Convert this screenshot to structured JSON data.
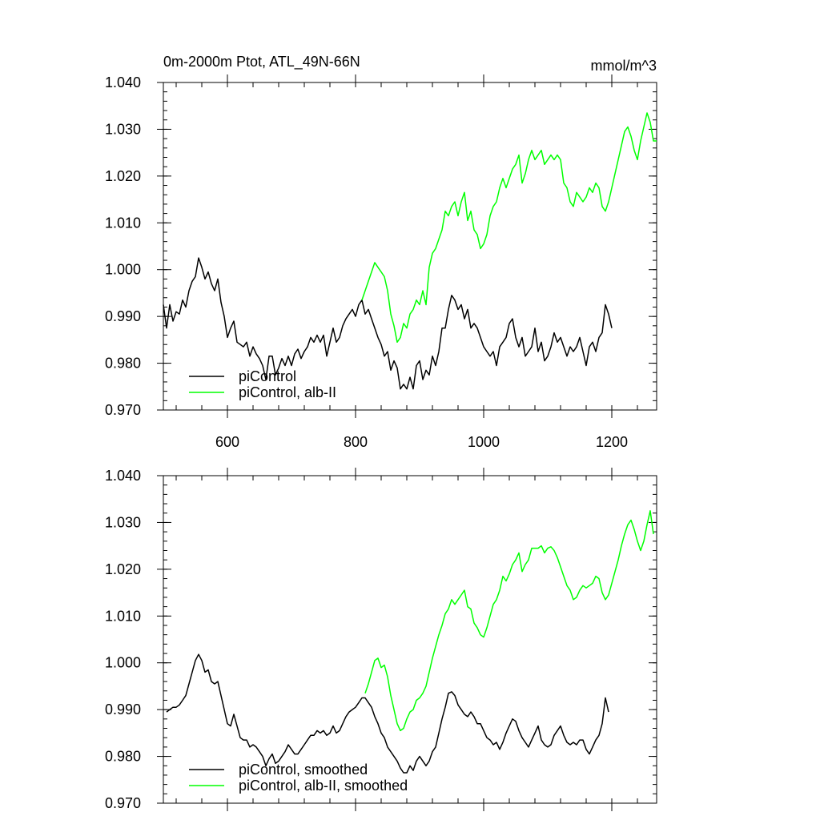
{
  "chart_data": [
    {
      "type": "line",
      "title_left": "0m-2000m Ptot, ATL_49N-66N",
      "title_right": "mmol/m^3",
      "xlabel": "",
      "ylabel": "",
      "xlim": [
        500,
        1270
      ],
      "ylim": [
        0.97,
        1.04
      ],
      "x_ticks": [
        600,
        800,
        1000,
        1200
      ],
      "x_tick_labels": [
        "600",
        "800",
        "1000",
        "1200"
      ],
      "y_ticks": [
        0.97,
        0.98,
        0.99,
        1.0,
        1.01,
        1.02,
        1.03,
        1.04
      ],
      "y_tick_labels": [
        "0.970",
        "0.980",
        "0.990",
        "1.000",
        "1.010",
        "1.020",
        "1.030",
        "1.040"
      ],
      "grid": false,
      "legend_position": "bottom-left",
      "series": [
        {
          "name": "piControl",
          "color": "#000000",
          "x": [
            500,
            505,
            510,
            515,
            520,
            525,
            530,
            535,
            540,
            545,
            550,
            555,
            560,
            565,
            570,
            575,
            580,
            585,
            590,
            595,
            600,
            605,
            610,
            615,
            620,
            625,
            630,
            635,
            640,
            645,
            650,
            655,
            660,
            665,
            670,
            675,
            680,
            685,
            690,
            695,
            700,
            705,
            710,
            715,
            720,
            725,
            730,
            735,
            740,
            745,
            750,
            755,
            760,
            765,
            770,
            775,
            780,
            785,
            790,
            795,
            800,
            805,
            810,
            815,
            820,
            825,
            830,
            835,
            840,
            845,
            850,
            855,
            860,
            865,
            870,
            875,
            880,
            885,
            890,
            895,
            900,
            905,
            910,
            915,
            920,
            925,
            930,
            935,
            940,
            945,
            950,
            955,
            960,
            965,
            970,
            975,
            980,
            985,
            990,
            995,
            1000,
            1005,
            1010,
            1015,
            1020,
            1025,
            1030,
            1035,
            1040,
            1045,
            1050,
            1055,
            1060,
            1065,
            1070,
            1075,
            1080,
            1085,
            1090,
            1095,
            1100,
            1105,
            1110,
            1115,
            1120,
            1125,
            1130,
            1135,
            1140,
            1145,
            1150,
            1155,
            1160,
            1165,
            1170,
            1175,
            1180,
            1185,
            1190,
            1195,
            1200
          ],
          "y": [
            0.9925,
            0.9875,
            0.9925,
            0.989,
            0.991,
            0.9905,
            0.9935,
            0.992,
            0.9955,
            0.9975,
            0.9985,
            1.0025,
            1.0005,
            0.998,
            0.9995,
            0.997,
            0.9955,
            0.998,
            0.993,
            0.99,
            0.9855,
            0.9875,
            0.989,
            0.9845,
            0.984,
            0.9835,
            0.9845,
            0.9815,
            0.9835,
            0.982,
            0.981,
            0.9795,
            0.9765,
            0.9815,
            0.9815,
            0.9775,
            0.979,
            0.981,
            0.9795,
            0.9815,
            0.9795,
            0.982,
            0.983,
            0.981,
            0.9825,
            0.9835,
            0.9855,
            0.9845,
            0.986,
            0.9845,
            0.986,
            0.9815,
            0.9845,
            0.9875,
            0.9845,
            0.9855,
            0.988,
            0.9895,
            0.9905,
            0.9915,
            0.99,
            0.9925,
            0.9935,
            0.9905,
            0.9915,
            0.9895,
            0.9875,
            0.9855,
            0.984,
            0.9815,
            0.9825,
            0.9785,
            0.9805,
            0.979,
            0.9745,
            0.9755,
            0.9745,
            0.977,
            0.9745,
            0.9795,
            0.9805,
            0.9765,
            0.9785,
            0.9775,
            0.9815,
            0.9795,
            0.9825,
            0.9875,
            0.9875,
            0.9915,
            0.9945,
            0.9935,
            0.9915,
            0.9925,
            0.9895,
            0.9915,
            0.9875,
            0.9885,
            0.9875,
            0.9855,
            0.9835,
            0.9825,
            0.9815,
            0.9825,
            0.9795,
            0.9835,
            0.9845,
            0.9855,
            0.9885,
            0.9895,
            0.9855,
            0.9835,
            0.9855,
            0.9815,
            0.9825,
            0.9835,
            0.9875,
            0.9825,
            0.9845,
            0.9805,
            0.9815,
            0.9835,
            0.9865,
            0.9845,
            0.9855,
            0.9835,
            0.9815,
            0.9835,
            0.9825,
            0.9835,
            0.9855,
            0.9825,
            0.9795,
            0.9835,
            0.9845,
            0.9825,
            0.9855,
            0.9865,
            0.9925,
            0.9905,
            0.9875
          ]
        },
        {
          "name": "piControl, alb-II",
          "color": "#00ff00",
          "x": [
            810,
            815,
            820,
            825,
            830,
            835,
            840,
            845,
            850,
            855,
            860,
            865,
            870,
            875,
            880,
            885,
            890,
            895,
            900,
            905,
            910,
            915,
            920,
            925,
            930,
            935,
            940,
            945,
            950,
            955,
            960,
            965,
            970,
            975,
            980,
            985,
            990,
            995,
            1000,
            1005,
            1010,
            1015,
            1020,
            1025,
            1030,
            1035,
            1040,
            1045,
            1050,
            1055,
            1060,
            1065,
            1070,
            1075,
            1080,
            1085,
            1090,
            1095,
            1100,
            1105,
            1110,
            1115,
            1120,
            1125,
            1130,
            1135,
            1140,
            1145,
            1150,
            1155,
            1160,
            1165,
            1170,
            1175,
            1180,
            1185,
            1190,
            1195,
            1200,
            1205,
            1210,
            1215,
            1220,
            1225,
            1230,
            1235,
            1240,
            1245,
            1250,
            1255,
            1260,
            1265,
            1270
          ],
          "y": [
            0.9935,
            0.9955,
            0.9975,
            0.9995,
            1.0015,
            1.0005,
            0.9995,
            0.9985,
            0.9955,
            0.9905,
            0.988,
            0.9845,
            0.9855,
            0.9885,
            0.9875,
            0.9905,
            0.9915,
            0.9935,
            0.9925,
            0.9955,
            0.9925,
            1.0005,
            1.0035,
            1.0045,
            1.0065,
            1.0085,
            1.0125,
            1.0115,
            1.0135,
            1.0145,
            1.0115,
            1.0145,
            1.0165,
            1.0105,
            1.0125,
            1.0085,
            1.0075,
            1.0045,
            1.0055,
            1.0075,
            1.0115,
            1.0135,
            1.0145,
            1.0175,
            1.0195,
            1.0175,
            1.0195,
            1.0215,
            1.0225,
            1.0245,
            1.0185,
            1.0205,
            1.0235,
            1.0255,
            1.0235,
            1.0245,
            1.0255,
            1.0225,
            1.0235,
            1.0245,
            1.0235,
            1.0245,
            1.0235,
            1.0185,
            1.0175,
            1.0145,
            1.0135,
            1.0165,
            1.0155,
            1.0145,
            1.0155,
            1.0175,
            1.0165,
            1.0185,
            1.0175,
            1.0135,
            1.0125,
            1.0145,
            1.0175,
            1.0205,
            1.0235,
            1.0265,
            1.0295,
            1.0305,
            1.0285,
            1.0255,
            1.0235,
            1.0275,
            1.0305,
            1.0335,
            1.0315,
            1.0275,
            1.0275
          ]
        }
      ]
    },
    {
      "type": "line",
      "title_left": "",
      "title_right": "",
      "xlabel": "",
      "ylabel": "",
      "xlim": [
        500,
        1270
      ],
      "ylim": [
        0.97,
        1.04
      ],
      "x_ticks": [
        600,
        800,
        1000,
        1200
      ],
      "x_tick_labels": [],
      "y_ticks": [
        0.97,
        0.98,
        0.99,
        1.0,
        1.01,
        1.02,
        1.03,
        1.04
      ],
      "y_tick_labels": [
        "0.970",
        "0.980",
        "0.990",
        "1.000",
        "1.010",
        "1.020",
        "1.030",
        "1.040"
      ],
      "grid": false,
      "legend_position": "bottom-left",
      "series": [
        {
          "name": "piControl, smoothed",
          "color": "#000000",
          "x": [
            505,
            510,
            515,
            520,
            525,
            530,
            535,
            540,
            545,
            550,
            555,
            560,
            565,
            570,
            575,
            580,
            585,
            590,
            595,
            600,
            605,
            610,
            615,
            620,
            625,
            630,
            635,
            640,
            645,
            650,
            655,
            660,
            665,
            670,
            675,
            680,
            685,
            690,
            695,
            700,
            705,
            710,
            715,
            720,
            725,
            730,
            735,
            740,
            745,
            750,
            755,
            760,
            765,
            770,
            775,
            780,
            785,
            790,
            795,
            800,
            805,
            810,
            815,
            820,
            825,
            830,
            835,
            840,
            845,
            850,
            855,
            860,
            865,
            870,
            875,
            880,
            885,
            890,
            895,
            900,
            905,
            910,
            915,
            920,
            925,
            930,
            935,
            940,
            945,
            950,
            955,
            960,
            965,
            970,
            975,
            980,
            985,
            990,
            995,
            1000,
            1005,
            1010,
            1015,
            1020,
            1025,
            1030,
            1035,
            1040,
            1045,
            1050,
            1055,
            1060,
            1065,
            1070,
            1075,
            1080,
            1085,
            1090,
            1095,
            1100,
            1105,
            1110,
            1115,
            1120,
            1125,
            1130,
            1135,
            1140,
            1145,
            1150,
            1155,
            1160,
            1165,
            1170,
            1175,
            1180,
            1185,
            1190,
            1195
          ],
          "y": [
            0.9895,
            0.99,
            0.9905,
            0.9905,
            0.991,
            0.992,
            0.993,
            0.9955,
            0.998,
            1.0005,
            1.0018,
            1.0005,
            0.998,
            0.9985,
            0.996,
            0.9955,
            0.996,
            0.993,
            0.99,
            0.987,
            0.9865,
            0.989,
            0.9865,
            0.984,
            0.9835,
            0.9835,
            0.982,
            0.9825,
            0.982,
            0.981,
            0.98,
            0.978,
            0.9795,
            0.9805,
            0.9785,
            0.979,
            0.98,
            0.981,
            0.9825,
            0.9815,
            0.9805,
            0.9805,
            0.9815,
            0.9825,
            0.9835,
            0.9845,
            0.9845,
            0.9855,
            0.985,
            0.9855,
            0.9845,
            0.985,
            0.9865,
            0.985,
            0.9855,
            0.987,
            0.9885,
            0.9895,
            0.99,
            0.9905,
            0.9915,
            0.9925,
            0.9925,
            0.9915,
            0.9905,
            0.9885,
            0.987,
            0.985,
            0.984,
            0.982,
            0.981,
            0.98,
            0.979,
            0.9775,
            0.9765,
            0.9765,
            0.978,
            0.977,
            0.979,
            0.98,
            0.979,
            0.978,
            0.979,
            0.981,
            0.982,
            0.985,
            0.988,
            0.9905,
            0.9935,
            0.9938,
            0.993,
            0.991,
            0.99,
            0.989,
            0.9885,
            0.9895,
            0.9885,
            0.987,
            0.987,
            0.9855,
            0.984,
            0.9835,
            0.9825,
            0.983,
            0.9815,
            0.983,
            0.985,
            0.9865,
            0.988,
            0.9875,
            0.9855,
            0.984,
            0.983,
            0.982,
            0.9835,
            0.985,
            0.9865,
            0.9835,
            0.9825,
            0.982,
            0.9825,
            0.9845,
            0.9855,
            0.9865,
            0.9845,
            0.983,
            0.9825,
            0.983,
            0.9825,
            0.9835,
            0.9835,
            0.9815,
            0.9805,
            0.982,
            0.9835,
            0.9845,
            0.987,
            0.9925,
            0.9895
          ]
        },
        {
          "name": "piControl, alb-II, smoothed",
          "color": "#00ff00",
          "x": [
            815,
            820,
            825,
            830,
            835,
            840,
            845,
            850,
            855,
            860,
            865,
            870,
            875,
            880,
            885,
            890,
            895,
            900,
            905,
            910,
            915,
            920,
            925,
            930,
            935,
            940,
            945,
            950,
            955,
            960,
            965,
            970,
            975,
            980,
            985,
            990,
            995,
            1000,
            1005,
            1010,
            1015,
            1020,
            1025,
            1030,
            1035,
            1040,
            1045,
            1050,
            1055,
            1060,
            1065,
            1070,
            1075,
            1080,
            1085,
            1090,
            1095,
            1100,
            1105,
            1110,
            1115,
            1120,
            1125,
            1130,
            1135,
            1140,
            1145,
            1150,
            1155,
            1160,
            1165,
            1170,
            1175,
            1180,
            1185,
            1190,
            1195,
            1200,
            1205,
            1210,
            1215,
            1220,
            1225,
            1230,
            1235,
            1240,
            1245,
            1250,
            1255,
            1260,
            1265
          ],
          "y": [
            0.9935,
            0.9955,
            0.998,
            1.0005,
            1.001,
            0.999,
            0.9995,
            0.997,
            0.993,
            0.99,
            0.987,
            0.9855,
            0.986,
            0.988,
            0.9895,
            0.99,
            0.992,
            0.9925,
            0.9935,
            0.995,
            0.998,
            1.001,
            1.0035,
            1.006,
            1.008,
            1.0105,
            1.0115,
            1.0135,
            1.0125,
            1.0135,
            1.0145,
            1.0155,
            1.012,
            1.0115,
            1.0085,
            1.0075,
            1.006,
            1.0055,
            1.0075,
            1.01,
            1.0125,
            1.0135,
            1.0155,
            1.0185,
            1.0175,
            1.019,
            1.021,
            1.022,
            1.0235,
            1.0195,
            1.021,
            1.022,
            1.0245,
            1.0245,
            1.0245,
            1.025,
            1.0235,
            1.0245,
            1.0248,
            1.024,
            1.0225,
            1.0205,
            1.0185,
            1.0165,
            1.0155,
            1.0135,
            1.014,
            1.0155,
            1.0165,
            1.016,
            1.0165,
            1.017,
            1.0185,
            1.018,
            1.015,
            1.0135,
            1.0145,
            1.017,
            1.0195,
            1.022,
            1.025,
            1.0275,
            1.0295,
            1.0305,
            1.0285,
            1.026,
            1.024,
            1.026,
            1.0295,
            1.0325,
            1.0275
          ]
        }
      ]
    }
  ]
}
